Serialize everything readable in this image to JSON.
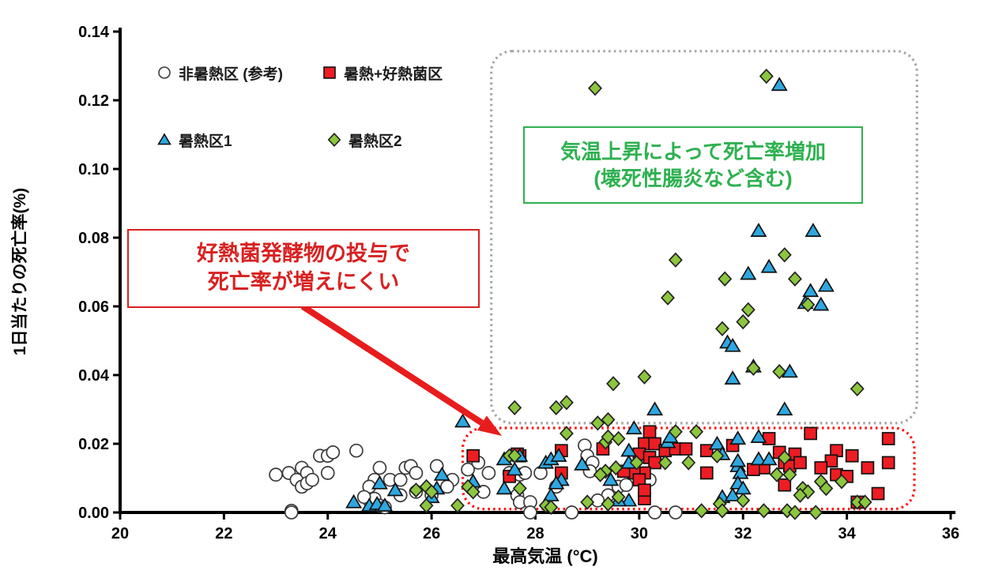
{
  "axes": {
    "x": {
      "label": "最高気温 (°C)",
      "ticks": [
        "20",
        "22",
        "24",
        "26",
        "28",
        "30",
        "32",
        "34",
        "36"
      ]
    },
    "y": {
      "label": "1日当たりの死亡率(%)",
      "ticks": [
        "0.00",
        "0.02",
        "0.04",
        "0.06",
        "0.08",
        "0.10",
        "0.12",
        "0.14"
      ]
    }
  },
  "legend": {
    "items": [
      {
        "label": "非暑熱区 (参考)"
      },
      {
        "label": "暑熱+好熱菌区"
      },
      {
        "label": "暑熱区1"
      },
      {
        "label": "暑熱区2"
      }
    ]
  },
  "annotations": {
    "green_box": {
      "lines": [
        "気温上昇によって死亡率増加",
        "(壊死性腸炎など含む)"
      ],
      "color": "#2eb150"
    },
    "red_box": {
      "lines": [
        "好熱菌発酵物の投与で",
        "死亡率が増えにくい"
      ],
      "color": "#d92121"
    },
    "arrow_color": "#e81c1c"
  },
  "chart_data": {
    "type": "scatter",
    "title": "",
    "xlabel": "最高気温 (°C)",
    "ylabel": "1日当たりの死亡率(%)",
    "xlim": [
      20,
      36
    ],
    "ylim": [
      0,
      0.14
    ],
    "xticks": [
      20,
      22,
      24,
      26,
      28,
      30,
      32,
      34,
      36
    ],
    "yticks": [
      0,
      0.02,
      0.04,
      0.06,
      0.08,
      0.1,
      0.12,
      0.14
    ],
    "grid": false,
    "legend_position": "top-left-inside",
    "highlight_regions": [
      {
        "name": "high-mortality-region",
        "stroke": "#a6a6a6",
        "x0": 27.15,
        "x1": 35.35,
        "y0": 0.026,
        "y1": 0.1343
      },
      {
        "name": "low-mortality-region",
        "stroke": "#ff1212",
        "x0": 26.6,
        "x1": 35.3,
        "y0": 0.001,
        "y1": 0.0246
      }
    ],
    "series": [
      {
        "id": "non-heat",
        "name": "非暑熱区 (参考)",
        "marker": "circle",
        "fill": "#ffffff",
        "stroke": "#3a3a3a",
        "size": 16,
        "points": [
          [
            23.0,
            0.011
          ],
          [
            23.25,
            0.0115
          ],
          [
            23.4,
            0.0095
          ],
          [
            23.5,
            0.013
          ],
          [
            23.6,
            0.0115
          ],
          [
            23.5,
            0.0075
          ],
          [
            23.6,
            0.0085
          ],
          [
            23.7,
            0.0095
          ],
          [
            23.85,
            0.0165
          ],
          [
            24.0,
            0.0165
          ],
          [
            24.0,
            0.0115
          ],
          [
            23.3,
            0.0005
          ],
          [
            24.1,
            0.0175
          ],
          [
            24.55,
            0.018
          ],
          [
            25.0,
            0.013
          ],
          [
            24.9,
            0.0095
          ],
          [
            25.2,
            0.0095
          ],
          [
            25.4,
            0.0095
          ],
          [
            25.5,
            0.013
          ],
          [
            25.6,
            0.0135
          ],
          [
            25.7,
            0.0115
          ],
          [
            25.4,
            0.005
          ],
          [
            25.7,
            0.006
          ],
          [
            24.8,
            0.0075
          ],
          [
            24.8,
            0.0035
          ],
          [
            24.9,
            0.004
          ],
          [
            26.1,
            0.0135
          ],
          [
            26.4,
            0.0095
          ],
          [
            26.7,
            0.0125
          ],
          [
            26.9,
            0.0145
          ],
          [
            27.0,
            0.006
          ],
          [
            27.1,
            0.0115
          ],
          [
            25.0,
            0.002
          ],
          [
            25.1,
            0.0015
          ],
          [
            24.7,
            0.0045
          ],
          [
            26.0,
            0.005
          ],
          [
            26.3,
            0.0075
          ],
          [
            27.5,
            0.0115
          ],
          [
            27.7,
            0.011
          ],
          [
            27.8,
            0.0115
          ],
          [
            28.1,
            0.0115
          ],
          [
            28.4,
            0.0075
          ],
          [
            27.65,
            0.005
          ],
          [
            27.7,
            0.003
          ],
          [
            27.9,
            0.003
          ],
          [
            28.95,
            0.0195
          ],
          [
            29.0,
            0.0165
          ],
          [
            29.1,
            0.0145
          ],
          [
            29.05,
            0.012
          ],
          [
            29.4,
            0.005
          ],
          [
            29.2,
            0.0035
          ],
          [
            29.6,
            0.0075
          ],
          [
            29.75,
            0.008
          ],
          [
            30.2,
            0.0095
          ],
          [
            23.3,
            0.0
          ],
          [
            27.9,
            0.0
          ],
          [
            28.7,
            0.0
          ],
          [
            30.3,
            0.0
          ],
          [
            30.7,
            0.0
          ]
        ]
      },
      {
        "id": "heat-thermo",
        "name": "暑熱+好熱菌区",
        "marker": "square",
        "fill": "#ee1c23",
        "stroke": "#111111",
        "size": 15,
        "points": [
          [
            26.8,
            0.0165
          ],
          [
            27.5,
            0.0105
          ],
          [
            27.7,
            0.0165
          ],
          [
            27.65,
            0.017
          ],
          [
            28.5,
            0.018
          ],
          [
            28.5,
            0.0115
          ],
          [
            29.3,
            0.0185
          ],
          [
            30.1,
            0.02
          ],
          [
            30.3,
            0.02
          ],
          [
            30.5,
            0.018
          ],
          [
            30.7,
            0.0185
          ],
          [
            30.9,
            0.0185
          ],
          [
            30.0,
            0.017
          ],
          [
            30.2,
            0.016
          ],
          [
            30.3,
            0.0145
          ],
          [
            30.1,
            0.0115
          ],
          [
            29.9,
            0.0115
          ],
          [
            29.7,
            0.012
          ],
          [
            30.0,
            0.0095
          ],
          [
            30.1,
            0.004
          ],
          [
            30.1,
            0.0065
          ],
          [
            31.3,
            0.018
          ],
          [
            31.8,
            0.0195
          ],
          [
            31.3,
            0.0115
          ],
          [
            30.2,
            0.0235
          ],
          [
            32.5,
            0.0215
          ],
          [
            33.3,
            0.023
          ],
          [
            34.8,
            0.0215
          ],
          [
            32.7,
            0.0175
          ],
          [
            33.0,
            0.017
          ],
          [
            33.8,
            0.018
          ],
          [
            34.1,
            0.0165
          ],
          [
            33.7,
            0.015
          ],
          [
            34.8,
            0.0145
          ],
          [
            32.4,
            0.013
          ],
          [
            32.2,
            0.0125
          ],
          [
            32.8,
            0.0145
          ],
          [
            32.9,
            0.0135
          ],
          [
            33.1,
            0.0145
          ],
          [
            33.5,
            0.013
          ],
          [
            33.8,
            0.011
          ],
          [
            34.0,
            0.0105
          ],
          [
            34.4,
            0.013
          ],
          [
            34.6,
            0.0055
          ],
          [
            32.8,
            0.008
          ],
          [
            34.2,
            0.003
          ]
        ]
      },
      {
        "id": "heat1",
        "name": "暑熱区1",
        "marker": "triangle",
        "fill": "#2ea7e0",
        "stroke": "#111111",
        "size": 17,
        "points": [
          [
            24.5,
            0.003
          ],
          [
            24.8,
            0.002
          ],
          [
            24.95,
            0.0025
          ],
          [
            25.1,
            0.002
          ],
          [
            25.0,
            0.0085
          ],
          [
            25.3,
            0.0065
          ],
          [
            26.0,
            0.0045
          ],
          [
            26.1,
            0.007
          ],
          [
            26.2,
            0.011
          ],
          [
            26.8,
            0.009
          ],
          [
            27.4,
            0.007
          ],
          [
            26.6,
            0.0265
          ],
          [
            27.4,
            0.0155
          ],
          [
            27.6,
            0.0125
          ],
          [
            28.2,
            0.0145
          ],
          [
            28.3,
            0.0155
          ],
          [
            28.45,
            0.0165
          ],
          [
            28.5,
            0.0095
          ],
          [
            28.4,
            0.0085
          ],
          [
            28.3,
            0.005
          ],
          [
            28.9,
            0.014
          ],
          [
            29.45,
            0.0095
          ],
          [
            29.8,
            0.018
          ],
          [
            29.8,
            0.0145
          ],
          [
            29.8,
            0.0035
          ],
          [
            29.6,
            0.0035
          ],
          [
            30.55,
            0.0205
          ],
          [
            31.5,
            0.02
          ],
          [
            31.6,
            0.017
          ],
          [
            31.9,
            0.0135
          ],
          [
            31.95,
            0.0115
          ],
          [
            31.6,
            0.0045
          ],
          [
            31.8,
            0.005
          ],
          [
            31.9,
            0.0215
          ],
          [
            32.3,
            0.022
          ],
          [
            32.3,
            0.0155
          ],
          [
            32.5,
            0.0155
          ],
          [
            31.9,
            0.015
          ],
          [
            31.9,
            0.0085
          ],
          [
            32.0,
            0.007
          ],
          [
            29.9,
            0.0245
          ],
          [
            30.6,
            0.022
          ],
          [
            27.7,
            0.0165
          ],
          [
            32.7,
            0.1245
          ],
          [
            32.3,
            0.082
          ],
          [
            33.35,
            0.082
          ],
          [
            32.1,
            0.0695
          ],
          [
            32.5,
            0.0715
          ],
          [
            33.3,
            0.0645
          ],
          [
            33.6,
            0.066
          ],
          [
            33.5,
            0.0605
          ],
          [
            33.2,
            0.061
          ],
          [
            31.7,
            0.0495
          ],
          [
            31.8,
            0.0485
          ],
          [
            32.2,
            0.0425
          ],
          [
            32.9,
            0.041
          ],
          [
            31.8,
            0.039
          ],
          [
            30.3,
            0.03
          ],
          [
            32.8,
            0.03
          ]
        ]
      },
      {
        "id": "heat2",
        "name": "暑熱区2",
        "marker": "diamond",
        "fill": "#8cc63e",
        "stroke": "#222222",
        "size": 15,
        "points": [
          [
            25.7,
            0.0065
          ],
          [
            25.9,
            0.0075
          ],
          [
            26.0,
            0.006
          ],
          [
            25.9,
            0.002
          ],
          [
            26.5,
            0.002
          ],
          [
            26.7,
            0.0075
          ],
          [
            26.8,
            0.006
          ],
          [
            27.7,
            0.007
          ],
          [
            27.5,
            0.0165
          ],
          [
            29.35,
            0.0205
          ],
          [
            29.35,
            0.012
          ],
          [
            29.25,
            0.011
          ],
          [
            29.55,
            0.013
          ],
          [
            29.95,
            0.0145
          ],
          [
            30.5,
            0.0145
          ],
          [
            30.95,
            0.0145
          ],
          [
            31.5,
            0.0165
          ],
          [
            29.6,
            0.0045
          ],
          [
            28.2,
            0.002
          ],
          [
            28.3,
            0.0015
          ],
          [
            29.0,
            0.003
          ],
          [
            29.4,
            0.0025
          ],
          [
            31.2,
            0.0005
          ],
          [
            31.55,
            0.0025
          ],
          [
            31.6,
            0.0005
          ],
          [
            32.0,
            0.0035
          ],
          [
            32.8,
            0.016
          ],
          [
            32.65,
            0.011
          ],
          [
            32.9,
            0.011
          ],
          [
            33.15,
            0.007
          ],
          [
            33.25,
            0.006
          ],
          [
            33.1,
            0.005
          ],
          [
            33.5,
            0.009
          ],
          [
            33.6,
            0.007
          ],
          [
            33.9,
            0.009
          ],
          [
            34.2,
            0.003
          ],
          [
            34.35,
            0.003
          ],
          [
            32.4,
            0.0005
          ],
          [
            32.85,
            0.0005
          ],
          [
            33.0,
            0.0
          ],
          [
            33.4,
            0.0
          ],
          [
            29.4,
            0.022
          ],
          [
            29.6,
            0.0215
          ],
          [
            30.7,
            0.0235
          ],
          [
            31.1,
            0.0235
          ],
          [
            28.6,
            0.023
          ],
          [
            29.2,
            0.026
          ],
          [
            29.4,
            0.027
          ],
          [
            27.6,
            0.0305
          ],
          [
            28.4,
            0.0305
          ],
          [
            28.6,
            0.032
          ],
          [
            27.6,
            0.0165
          ],
          [
            32.45,
            0.127
          ],
          [
            29.15,
            0.1235
          ],
          [
            32.8,
            0.075
          ],
          [
            30.7,
            0.0735
          ],
          [
            31.65,
            0.068
          ],
          [
            33.0,
            0.068
          ],
          [
            30.55,
            0.0625
          ],
          [
            32.1,
            0.059
          ],
          [
            32.0,
            0.0555
          ],
          [
            31.6,
            0.0535
          ],
          [
            32.2,
            0.042
          ],
          [
            32.7,
            0.041
          ],
          [
            30.1,
            0.0395
          ],
          [
            29.5,
            0.0375
          ],
          [
            34.2,
            0.036
          ],
          [
            33.25,
            0.0605
          ]
        ]
      }
    ]
  }
}
